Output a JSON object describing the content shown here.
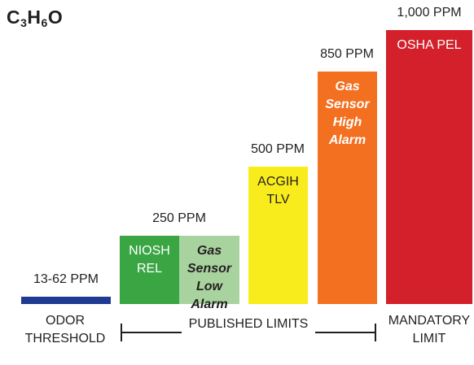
{
  "formula": {
    "C": "C",
    "c_sub": "3",
    "H": "H",
    "h_sub": "6",
    "O": "O"
  },
  "chart_data": {
    "type": "bar",
    "title": "C3H6O",
    "unit": "PPM",
    "bars": [
      {
        "key": "odor",
        "value": 62,
        "value_label": "13-62 PPM",
        "text": [],
        "color": "#1f3a93"
      },
      {
        "key": "niosh",
        "value": 250,
        "value_label": "250 PPM",
        "text": [
          "NIOSH",
          "REL"
        ],
        "color": "#3aa543"
      },
      {
        "key": "gas_low",
        "value": 250,
        "value_label": "",
        "text": [
          "Gas",
          "Sensor",
          "Low",
          "Alarm"
        ],
        "color": "#a9d39e"
      },
      {
        "key": "acgih",
        "value": 500,
        "value_label": "500 PPM",
        "text": [
          "ACGIH",
          "TLV"
        ],
        "color": "#f9ec1c"
      },
      {
        "key": "gas_high",
        "value": 850,
        "value_label": "850 PPM",
        "text": [
          "Gas",
          "Sensor",
          "High",
          "Alarm"
        ],
        "color": "#f37021"
      },
      {
        "key": "osha",
        "value": 1000,
        "value_label": "1,000 PPM",
        "text": [
          "OSHA PEL"
        ],
        "color": "#d3202a"
      }
    ],
    "categories": [
      {
        "key": "odor_threshold",
        "lines": [
          "ODOR",
          "THRESHOLD"
        ]
      },
      {
        "key": "published_limits",
        "lines": [
          "PUBLISHED LIMITS"
        ]
      },
      {
        "key": "mandatory_limit",
        "lines": [
          "MANDATORY",
          "LIMIT"
        ]
      }
    ],
    "ylim": [
      0,
      1000
    ]
  }
}
